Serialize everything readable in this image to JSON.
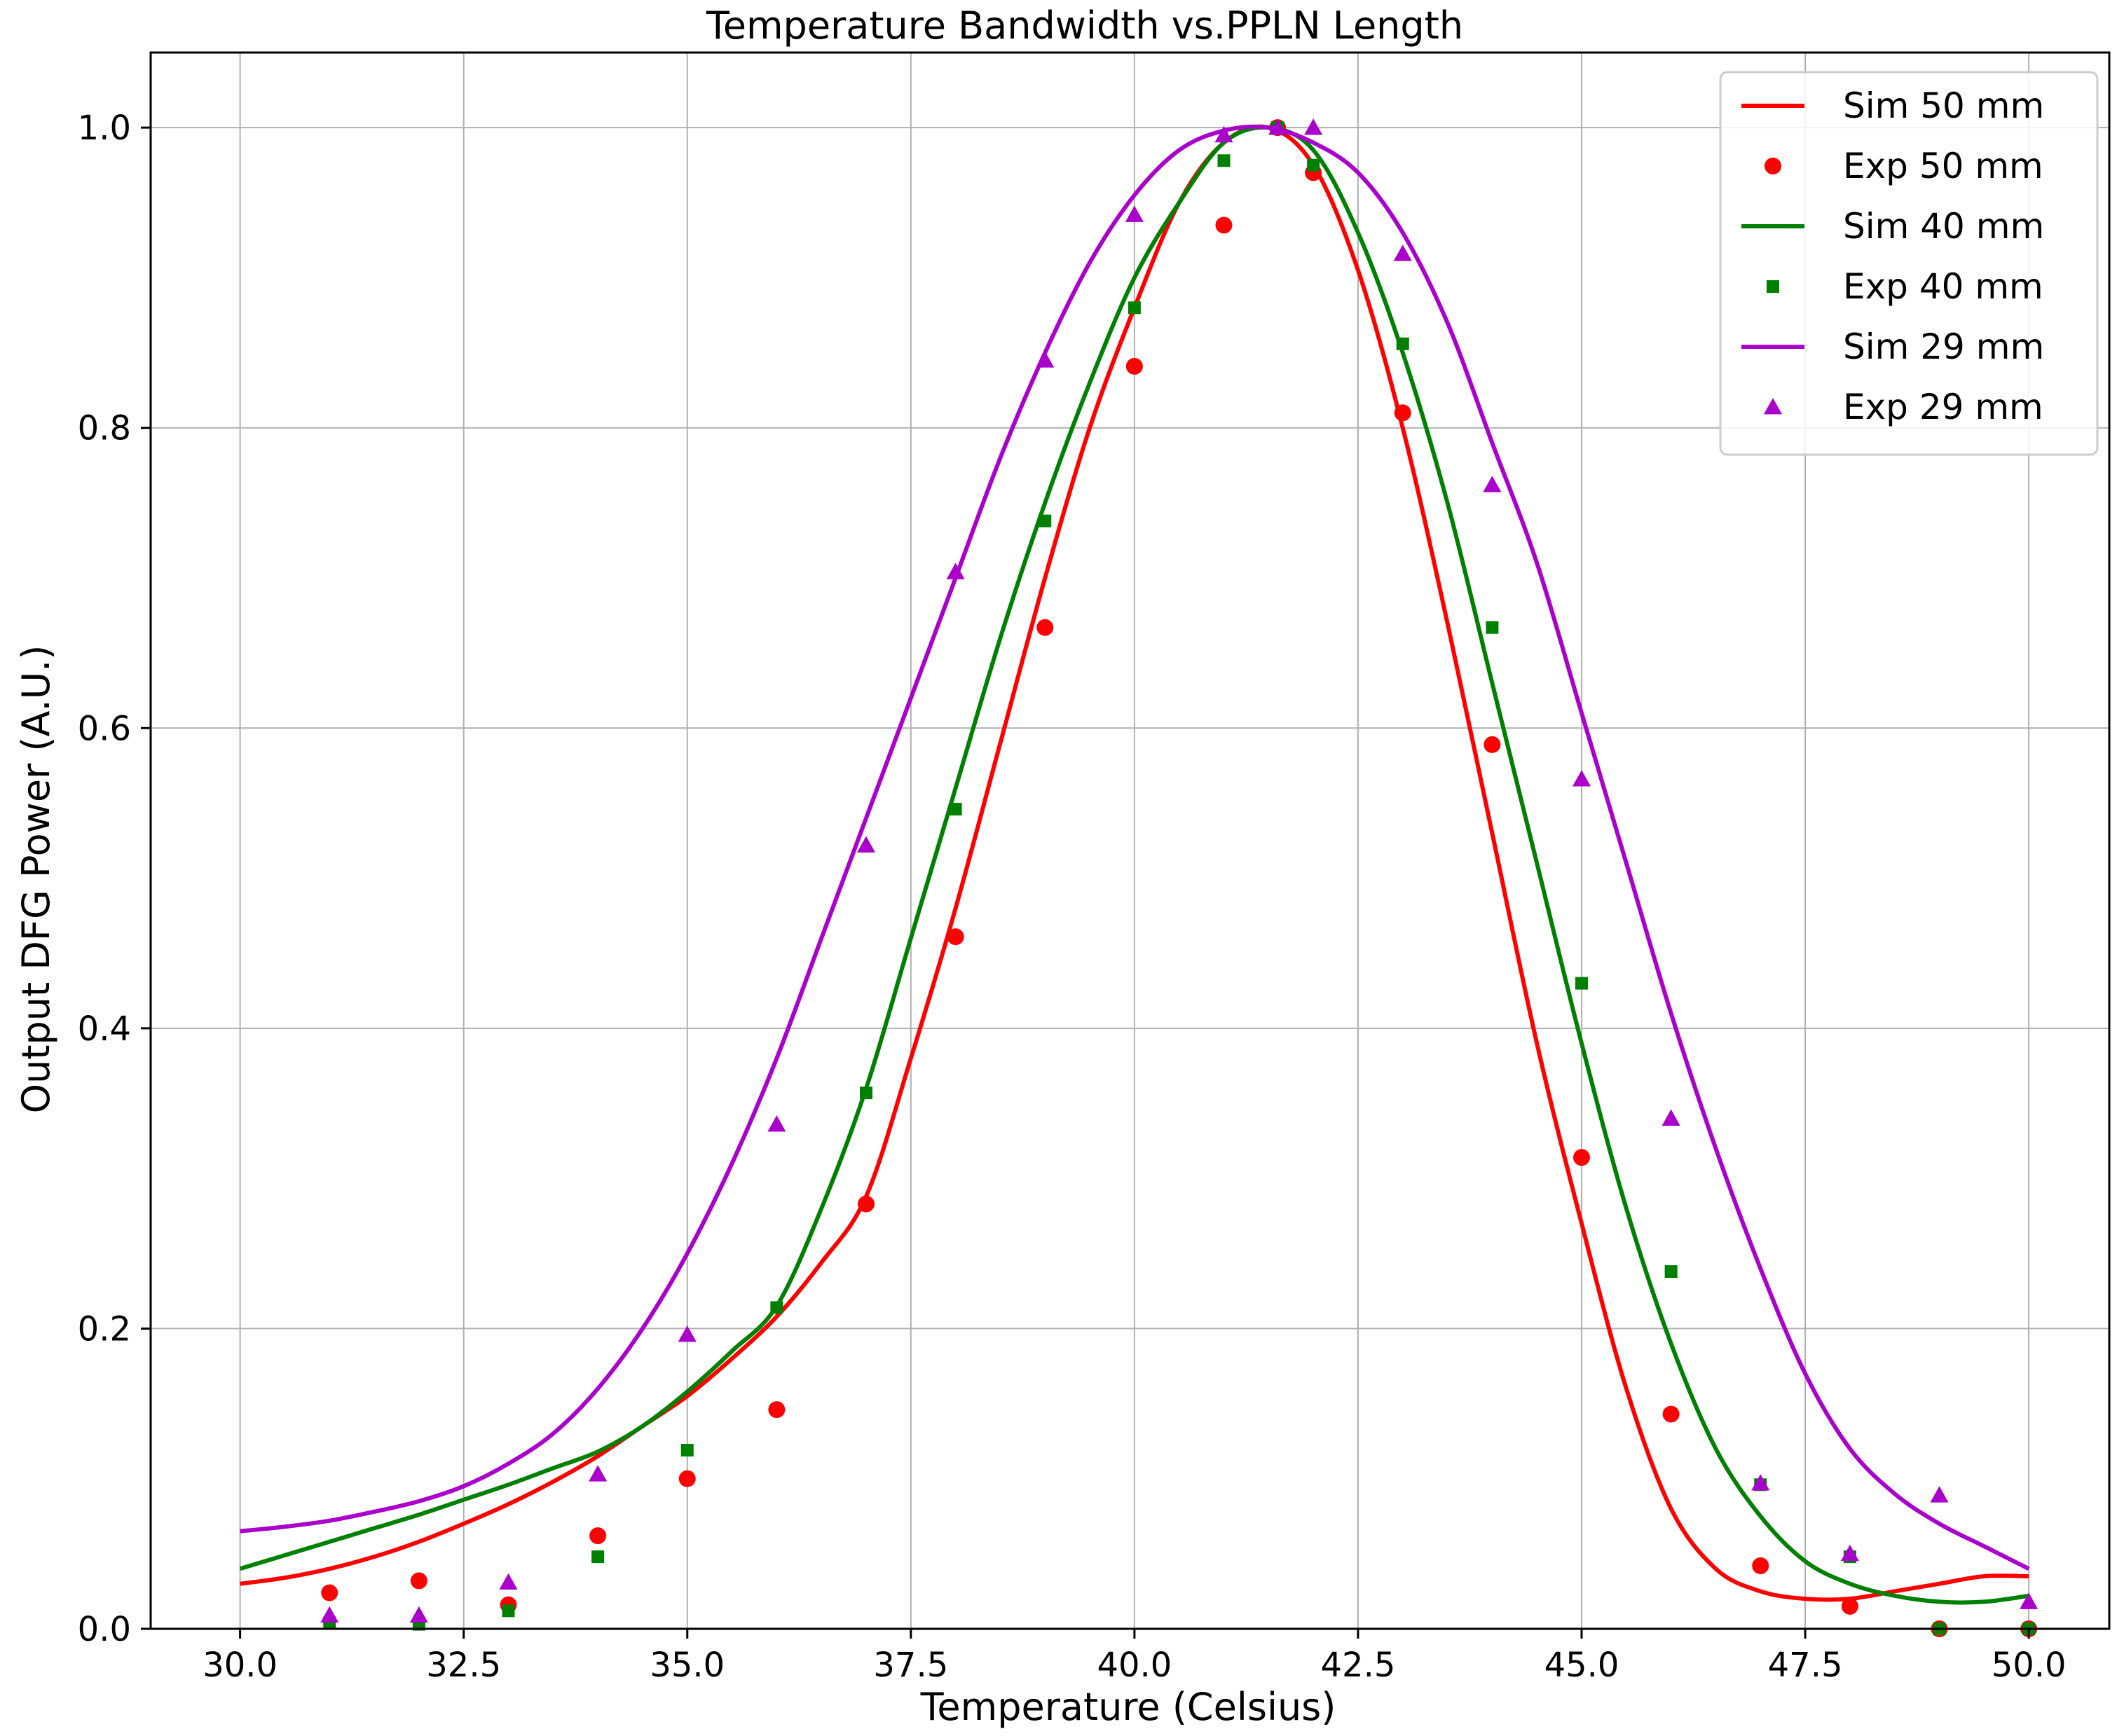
{
  "chart_data": {
    "type": "line",
    "title": "Temperature Bandwidth vs.PPLN Length",
    "xlabel": "Temperature (Celsius)",
    "ylabel": "Output DFG Power (A.U.)",
    "xlim": [
      29.0,
      50.9
    ],
    "ylim": [
      0.0,
      1.05
    ],
    "xticks": [
      30.0,
      32.5,
      35.0,
      37.5,
      40.0,
      42.5,
      45.0,
      47.5,
      50.0
    ],
    "xtick_labels": [
      "30.0",
      "32.5",
      "35.0",
      "37.5",
      "40.0",
      "42.5",
      "45.0",
      "47.5",
      "50.0"
    ],
    "yticks": [
      0.0,
      0.2,
      0.4,
      0.6,
      0.8,
      1.0
    ],
    "ytick_labels": [
      "0.0",
      "0.2",
      "0.4",
      "0.6",
      "0.8",
      "1.0"
    ],
    "grid": true,
    "legend_position": "top-right",
    "series": [
      {
        "name": "Sim 50 mm",
        "kind": "line",
        "color": "#ff0000",
        "x": [
          30,
          30.5,
          31,
          31.5,
          32,
          32.5,
          33,
          33.5,
          34,
          34.5,
          35,
          35.5,
          36,
          36.5,
          37,
          37.5,
          38,
          38.5,
          39,
          39.5,
          40,
          40.5,
          41,
          41.5,
          42,
          42.5,
          43,
          43.5,
          44,
          44.5,
          45,
          45.5,
          46,
          46.5,
          47,
          47.5,
          48,
          48.5,
          49,
          49.5,
          50
        ],
        "y": [
          0.03,
          0.034,
          0.04,
          0.048,
          0.058,
          0.07,
          0.083,
          0.098,
          0.115,
          0.135,
          0.155,
          0.18,
          0.208,
          0.244,
          0.288,
          0.38,
          0.48,
          0.59,
          0.7,
          0.8,
          0.88,
          0.95,
          0.99,
          1.0,
          0.975,
          0.905,
          0.8,
          0.67,
          0.53,
          0.39,
          0.27,
          0.16,
          0.08,
          0.04,
          0.025,
          0.02,
          0.02,
          0.025,
          0.03,
          0.035,
          0.035
        ]
      },
      {
        "name": "Exp 50 mm",
        "kind": "marker",
        "marker": "circle",
        "color": "#ff0000",
        "x": [
          31,
          32,
          33,
          34,
          35,
          36,
          37,
          38,
          39,
          40,
          41,
          41.6,
          42,
          43,
          44,
          45,
          46,
          47,
          48,
          49,
          50
        ],
        "y": [
          0.024,
          0.032,
          0.016,
          0.062,
          0.1,
          0.146,
          0.283,
          0.461,
          0.667,
          0.841,
          0.935,
          1.0,
          0.97,
          0.81,
          0.589,
          0.314,
          0.143,
          0.042,
          0.015,
          0.0,
          0.0
        ]
      },
      {
        "name": "Sim 40 mm",
        "kind": "line",
        "color": "#008000",
        "x": [
          30,
          30.5,
          31,
          31.5,
          32,
          32.5,
          33,
          33.5,
          34,
          34.5,
          35,
          35.5,
          36,
          36.5,
          37,
          37.5,
          38,
          38.5,
          39,
          39.5,
          40,
          40.5,
          41,
          41.5,
          42,
          42.5,
          43,
          43.5,
          44,
          44.5,
          45,
          45.5,
          46,
          46.5,
          47,
          47.5,
          48,
          48.5,
          49,
          49.5,
          50
        ],
        "y": [
          0.04,
          0.049,
          0.058,
          0.067,
          0.076,
          0.086,
          0.096,
          0.107,
          0.118,
          0.135,
          0.158,
          0.185,
          0.215,
          0.28,
          0.36,
          0.46,
          0.56,
          0.66,
          0.75,
          0.83,
          0.9,
          0.95,
          0.99,
          1.0,
          0.985,
          0.93,
          0.85,
          0.75,
          0.63,
          0.51,
          0.39,
          0.28,
          0.19,
          0.12,
          0.075,
          0.045,
          0.03,
          0.022,
          0.018,
          0.018,
          0.022
        ]
      },
      {
        "name": "Exp 40 mm",
        "kind": "marker",
        "marker": "square",
        "color": "#008000",
        "x": [
          31,
          32,
          33,
          34,
          35,
          36,
          37,
          38,
          39,
          40,
          41,
          41.6,
          42,
          43,
          44,
          45,
          46,
          47,
          48,
          49,
          50
        ],
        "y": [
          0.004,
          0.003,
          0.012,
          0.048,
          0.119,
          0.214,
          0.357,
          0.546,
          0.738,
          0.88,
          0.978,
          1.0,
          0.975,
          0.856,
          0.667,
          0.43,
          0.238,
          0.096,
          0.048,
          0.0,
          0.0
        ]
      },
      {
        "name": "Sim 29 mm",
        "kind": "line",
        "color": "#aa00cc",
        "x": [
          30,
          30.5,
          31,
          31.5,
          32,
          32.5,
          33,
          33.5,
          34,
          34.5,
          35,
          35.5,
          36,
          36.5,
          37,
          37.5,
          38,
          38.5,
          39,
          39.5,
          40,
          40.5,
          41,
          41.5,
          42,
          42.5,
          43,
          43.5,
          44,
          44.5,
          45,
          45.5,
          46,
          46.5,
          47,
          47.5,
          48,
          48.5,
          49,
          49.5,
          50
        ],
        "y": [
          0.065,
          0.068,
          0.072,
          0.078,
          0.085,
          0.095,
          0.11,
          0.13,
          0.16,
          0.2,
          0.25,
          0.31,
          0.38,
          0.46,
          0.54,
          0.62,
          0.7,
          0.78,
          0.85,
          0.91,
          0.955,
          0.985,
          0.998,
          1.0,
          0.99,
          0.97,
          0.93,
          0.87,
          0.79,
          0.71,
          0.61,
          0.51,
          0.41,
          0.32,
          0.24,
          0.17,
          0.12,
          0.09,
          0.07,
          0.055,
          0.04
        ]
      },
      {
        "name": "Exp 29 mm",
        "kind": "marker",
        "marker": "triangle",
        "color": "#aa00cc",
        "x": [
          31,
          32,
          33,
          34,
          35,
          36,
          37,
          38,
          39,
          40,
          41,
          41.6,
          42,
          43,
          44,
          45,
          46,
          47,
          48,
          49,
          50
        ],
        "y": [
          0.009,
          0.009,
          0.031,
          0.103,
          0.196,
          0.336,
          0.522,
          0.704,
          0.845,
          0.942,
          0.995,
          1.0,
          1.0,
          0.916,
          0.762,
          0.566,
          0.34,
          0.097,
          0.05,
          0.089,
          0.018
        ]
      }
    ]
  }
}
